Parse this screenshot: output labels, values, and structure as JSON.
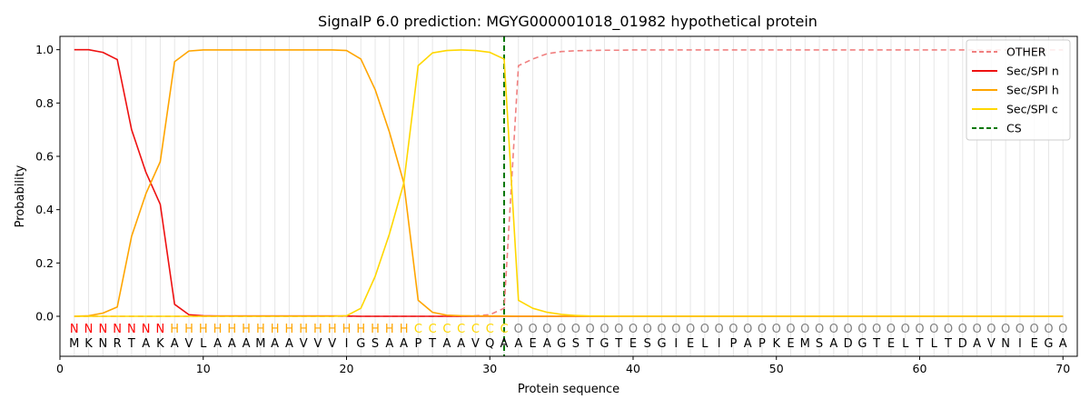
{
  "chart_data": {
    "type": "line",
    "title": "SignalP 6.0 prediction: MGYG000001018_01982 hypothetical protein",
    "xlabel": "Protein sequence",
    "ylabel": "Probability",
    "xlim": [
      0,
      71
    ],
    "ylim": [
      -0.15,
      1.05
    ],
    "x_ticks": [
      0,
      10,
      20,
      30,
      40,
      50,
      60,
      70
    ],
    "y_ticks": [
      0.0,
      0.2,
      0.4,
      0.6,
      0.8,
      1.0
    ],
    "x_tick_labels": [
      "0",
      "10",
      "20",
      "30",
      "40",
      "50",
      "60",
      "70"
    ],
    "y_tick_labels": [
      "0.0",
      "0.2",
      "0.4",
      "0.6",
      "0.8",
      "1.0"
    ],
    "vertical_gridlines": "at every residue position",
    "legend_position": "top-right",
    "sequence": "MKNRTAKAVLAAAMAAVVVIGSAAPTAAVQAAEAGSTGTESGIELIPAPKEMSADGTELTLTDAVNIEGA",
    "labels": "NNNNNNNHHHHHHHHHHHHHHHHHCCCCCCCOOOOOOOOOOOOOOOOOOOOOOOOOOOOOOOOOOOOOOO",
    "label_colors": {
      "N": "#ff0000",
      "H": "#ffa500",
      "C": "#ffd700",
      "O": "#808080"
    },
    "cleavage_site": 31,
    "series": [
      {
        "name": "OTHER",
        "color": "#f08080",
        "style": "dashed",
        "values": [
          0,
          0,
          0,
          0,
          0,
          0,
          0,
          0,
          0,
          0,
          0,
          0,
          0,
          0,
          0,
          0,
          0,
          0,
          0,
          0,
          0,
          0,
          0,
          0,
          0,
          0,
          0,
          0,
          0.002,
          0.006,
          0.03,
          0.94,
          0.965,
          0.985,
          0.993,
          0.996,
          0.997,
          0.998,
          0.998,
          0.999,
          0.999,
          0.999,
          0.999,
          0.999,
          0.999,
          0.999,
          0.999,
          0.999,
          0.999,
          0.999,
          0.999,
          0.999,
          0.999,
          0.999,
          0.999,
          0.999,
          0.999,
          0.999,
          0.999,
          0.999,
          0.999,
          0.999,
          0.999,
          0.999,
          0.999,
          0.999,
          0.999,
          0.999,
          0.999,
          0.999
        ]
      },
      {
        "name": "Sec/SPI n",
        "color": "#ee1111",
        "style": "solid",
        "values": [
          1.0,
          1.0,
          0.99,
          0.963,
          0.7,
          0.54,
          0.42,
          0.045,
          0.006,
          0.002,
          0.001,
          0.001,
          0.001,
          0.001,
          0.001,
          0.001,
          0.001,
          0.001,
          0.001,
          0.001,
          0,
          0,
          0,
          0,
          0,
          0,
          0,
          0,
          0,
          0,
          0,
          0,
          0,
          0,
          0,
          0,
          0,
          0,
          0,
          0,
          0,
          0,
          0,
          0,
          0,
          0,
          0,
          0,
          0,
          0,
          0,
          0,
          0,
          0,
          0,
          0,
          0,
          0,
          0,
          0,
          0,
          0,
          0,
          0,
          0,
          0,
          0,
          0,
          0,
          0
        ]
      },
      {
        "name": "Sec/SPI h",
        "color": "#ffa500",
        "style": "solid",
        "values": [
          0,
          0.002,
          0.012,
          0.035,
          0.3,
          0.46,
          0.58,
          0.955,
          0.995,
          0.999,
          0.999,
          0.999,
          0.999,
          0.999,
          0.999,
          0.999,
          0.999,
          0.999,
          0.999,
          0.997,
          0.965,
          0.85,
          0.69,
          0.5,
          0.06,
          0.015,
          0.004,
          0.002,
          0.001,
          0.001,
          0.001,
          0,
          0,
          0,
          0,
          0,
          0,
          0,
          0,
          0,
          0,
          0,
          0,
          0,
          0,
          0,
          0,
          0,
          0,
          0,
          0,
          0,
          0,
          0,
          0,
          0,
          0,
          0,
          0,
          0,
          0,
          0,
          0,
          0,
          0,
          0,
          0,
          0,
          0,
          0
        ]
      },
      {
        "name": "Sec/SPI c",
        "color": "#ffd700",
        "style": "solid",
        "values": [
          0,
          0,
          0,
          0,
          0,
          0,
          0,
          0,
          0,
          0,
          0,
          0,
          0,
          0,
          0,
          0,
          0,
          0,
          0,
          0.002,
          0.03,
          0.15,
          0.31,
          0.5,
          0.94,
          0.988,
          0.997,
          0.999,
          0.997,
          0.99,
          0.965,
          0.06,
          0.03,
          0.015,
          0.007,
          0.003,
          0.001,
          0.001,
          0,
          0,
          0,
          0,
          0,
          0,
          0,
          0,
          0,
          0,
          0,
          0,
          0,
          0,
          0,
          0,
          0,
          0,
          0,
          0,
          0,
          0,
          0,
          0,
          0,
          0,
          0,
          0,
          0,
          0,
          0,
          0
        ]
      }
    ],
    "legend": [
      {
        "name": "OTHER",
        "color": "#f08080",
        "style": "dashed"
      },
      {
        "name": "Sec/SPI n",
        "color": "#ee1111",
        "style": "solid"
      },
      {
        "name": "Sec/SPI h",
        "color": "#ffa500",
        "style": "solid"
      },
      {
        "name": "Sec/SPI c",
        "color": "#ffd700",
        "style": "solid"
      },
      {
        "name": "CS",
        "color": "#007700",
        "style": "dashed"
      }
    ]
  }
}
